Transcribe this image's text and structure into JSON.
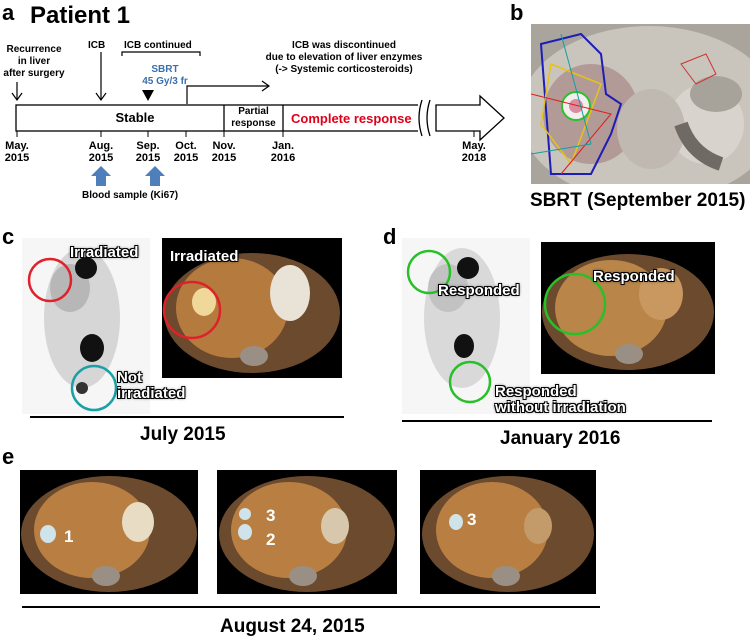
{
  "panel_a": {
    "label": "a",
    "title": "Patient 1",
    "recurrence": [
      "Recurrence",
      "in liver",
      "after surgery"
    ],
    "icb": "ICB",
    "icb_continued": "ICB continued",
    "sbrt": [
      "SBRT",
      "45 Gy/3 fr"
    ],
    "discontinued": [
      "ICB was discontinued",
      "due to elevation of liver enzymes",
      "(-> Systemic corticosteroids)"
    ],
    "stable": "Stable",
    "partial": [
      "Partial",
      "response"
    ],
    "complete": "Complete response",
    "dates": [
      [
        "May.",
        "2015"
      ],
      [
        "Aug.",
        "2015"
      ],
      [
        "Sep.",
        "2015"
      ],
      [
        "Oct.",
        "2015"
      ],
      [
        "Nov.",
        "2015"
      ],
      [
        "Jan.",
        "2016"
      ],
      [
        "May.",
        "2018"
      ]
    ],
    "blood_sample": "Blood sample (Ki67)",
    "colors": {
      "complete_response": "#e0001b",
      "sbrt_text": "#3a6fb0",
      "blood_arrow": "#4f7fba"
    }
  },
  "panel_b": {
    "label": "b",
    "caption": "SBRT (September 2015)"
  },
  "panel_c": {
    "label": "c",
    "ann_irradiated_mip": "Irradiated",
    "ann_irradiated_pet": "Irradiated",
    "ann_not_irradiated": [
      "Not",
      "irradiated"
    ],
    "caption": "July 2015"
  },
  "panel_d": {
    "label": "d",
    "ann_responded_mip": "Responded",
    "ann_responded_pet": "Responded",
    "ann_responded_wo": [
      "Responded",
      "without irradiation"
    ],
    "caption": "January 2016"
  },
  "panel_e": {
    "label": "e",
    "lesions": [
      [
        "1"
      ],
      [
        "3",
        "2"
      ],
      [
        "3"
      ]
    ],
    "caption": "August 24, 2015"
  }
}
